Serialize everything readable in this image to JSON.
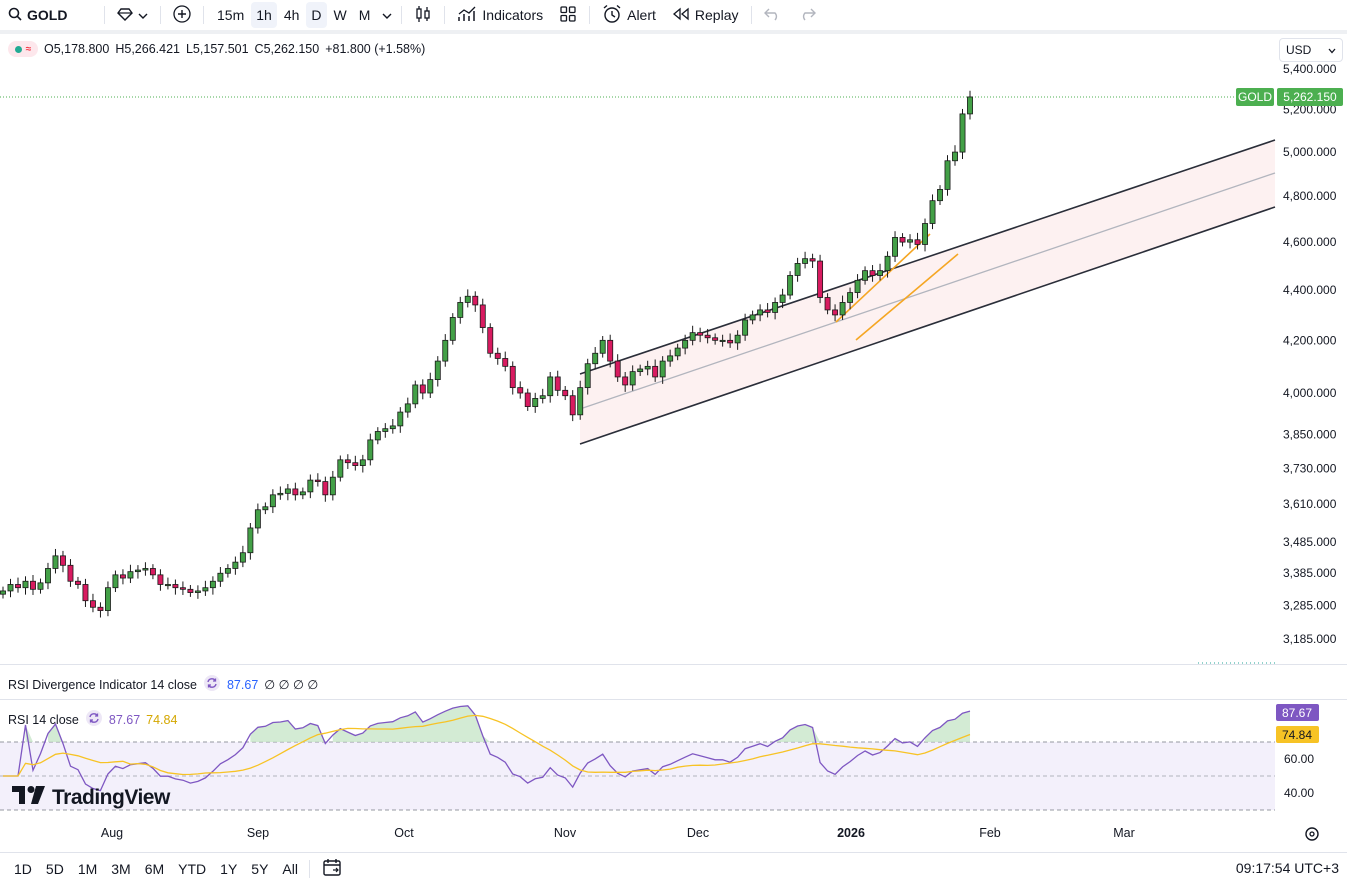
{
  "toolbar": {
    "symbol": "GOLD",
    "intervals": [
      "15m",
      "1h",
      "4h",
      "D",
      "W",
      "M"
    ],
    "active_interval": "D",
    "indicators_label": "Indicators",
    "alert_label": "Alert",
    "replay_label": "Replay"
  },
  "legend": {
    "open": "O5,178.800",
    "high": "H5,266.421",
    "low": "L5,157.501",
    "close": "C5,262.150",
    "change": "+81.800 (+1.58%)"
  },
  "currency": "USD",
  "price_badge": {
    "symbol": "GOLD",
    "price": "5,262.150",
    "color": "#4caf50"
  },
  "price_axis_ticks": [
    "5,400.000",
    "5,200.000",
    "5,000.000",
    "4,800.000",
    "4,600.000",
    "4,400.000",
    "4,200.000",
    "4,000.000",
    "3,850.000",
    "3,730.000",
    "3,610.000",
    "3,485.000",
    "3,385.000",
    "3,285.000",
    "3,185.000"
  ],
  "time_axis": [
    "Aug",
    "Sep",
    "Oct",
    "Nov",
    "Dec",
    "2026",
    "Feb",
    "Mar"
  ],
  "rsi_divergence": {
    "label": "RSI Divergence Indicator 14 close",
    "value": "87.67",
    "extras": "∅ ∅ ∅ ∅"
  },
  "rsi": {
    "label": "RSI 14 close",
    "value": "87.67",
    "ma_value": "74.84",
    "ticks": [
      "60.00",
      "40.00"
    ],
    "rsi_color": "#7e57c2",
    "ma_color": "#f7c325"
  },
  "logo_text": "TradingView",
  "ranges": [
    "1D",
    "5D",
    "1M",
    "3M",
    "6M",
    "YTD",
    "1Y",
    "5Y",
    "All"
  ],
  "clock": "09:17:54 UTC+3",
  "chart_data": {
    "type": "candlestick",
    "log_scale": true,
    "ylim": [
      3150,
      5450
    ],
    "up_color": "#26a69a",
    "down_color": "#d81b60",
    "x_months": [
      "Aug",
      "Sep",
      "Oct",
      "Nov",
      "Dec",
      "2026",
      "Feb",
      "Mar"
    ],
    "closes": [
      3330,
      3350,
      3340,
      3360,
      3335,
      3355,
      3400,
      3440,
      3410,
      3360,
      3350,
      3300,
      3280,
      3270,
      3340,
      3380,
      3370,
      3390,
      3395,
      3400,
      3380,
      3350,
      3350,
      3340,
      3335,
      3325,
      3330,
      3340,
      3360,
      3385,
      3400,
      3420,
      3450,
      3530,
      3590,
      3600,
      3640,
      3645,
      3660,
      3640,
      3650,
      3690,
      3685,
      3640,
      3700,
      3760,
      3750,
      3740,
      3760,
      3830,
      3860,
      3870,
      3880,
      3930,
      3960,
      4030,
      4000,
      4050,
      4120,
      4200,
      4290,
      4350,
      4375,
      4340,
      4250,
      4150,
      4130,
      4100,
      4020,
      4000,
      3950,
      3980,
      3990,
      4060,
      4010,
      3990,
      3920,
      4020,
      4110,
      4150,
      4200,
      4120,
      4060,
      4030,
      4080,
      4090,
      4100,
      4060,
      4120,
      4140,
      4170,
      4200,
      4230,
      4220,
      4210,
      4200,
      4200,
      4190,
      4220,
      4280,
      4300,
      4320,
      4310,
      4350,
      4380,
      4460,
      4510,
      4530,
      4520,
      4370,
      4320,
      4300,
      4350,
      4390,
      4440,
      4480,
      4460,
      4480,
      4540,
      4620,
      4600,
      4610,
      4590,
      4680,
      4780,
      4830,
      4960,
      5000,
      5180,
      5262
    ]
  }
}
